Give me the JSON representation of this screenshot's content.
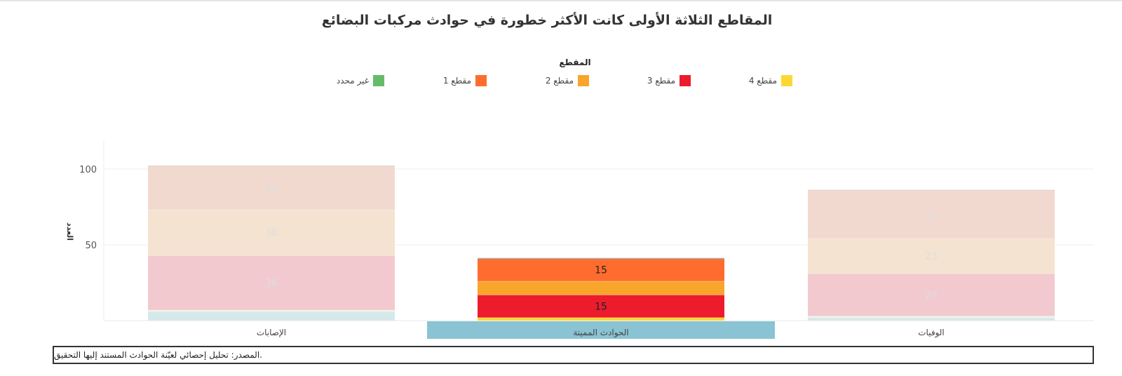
{
  "chart_data": {
    "type": "bar",
    "stacked": true,
    "title": "المقاطع الثلاثة الأولى كانت الأكثر خطورة في حوادث مركبات البضائع",
    "ylabel": "العدد",
    "xlabel": "",
    "ylim": [
      0,
      120
    ],
    "yticks": [
      50,
      100
    ],
    "grid": true,
    "legend": {
      "title": "المقطع",
      "placement": "top-center",
      "entries": [
        {
          "key": "s4",
          "label": "مقطع 4",
          "color": "#FDD835"
        },
        {
          "key": "s3",
          "label": "مقطع 3",
          "color": "#EC1C2D"
        },
        {
          "key": "s2",
          "label": "مقطع 2",
          "color": "#F9A52B"
        },
        {
          "key": "s1",
          "label": "مقطع 1",
          "color": "#FF6D2E"
        },
        {
          "key": "unspecified",
          "label": "غير محدد",
          "color": "#66BB6A"
        }
      ]
    },
    "categories": [
      "الإصابات",
      "الحوادث المميتة",
      "الوفيات"
    ],
    "selected_category": "الحوادث المميتة",
    "series": [
      {
        "key": "unspecified",
        "values": [
          0,
          0,
          0
        ]
      },
      {
        "key": "baseline",
        "values": [
          6,
          0,
          2
        ]
      },
      {
        "key": "s4",
        "values": [
          1,
          2,
          1
        ]
      },
      {
        "key": "s3",
        "values": [
          36,
          15,
          28
        ]
      },
      {
        "key": "s2",
        "values": [
          30,
          9,
          23
        ]
      },
      {
        "key": "s1",
        "values": [
          29,
          15,
          32
        ]
      }
    ],
    "dimmed_colors": {
      "baseline": "#D6E9EA",
      "s4": "#EEF2E2",
      "s3": "#F2C9CE",
      "s2": "#F4E3D0",
      "s1": "#F2D9D0"
    },
    "baseline_color": "#B6D7DC",
    "value_labels": [
      {
        "category": 0,
        "series": "s3",
        "text": "36"
      },
      {
        "category": 0,
        "series": "s2",
        "text": "30"
      },
      {
        "category": 0,
        "series": "s1",
        "text": "29"
      },
      {
        "category": 1,
        "series": "s3",
        "text": "15"
      },
      {
        "category": 1,
        "series": "s1",
        "text": "15"
      },
      {
        "category": 2,
        "series": "s3",
        "text": "28"
      },
      {
        "category": 2,
        "series": "s2",
        "text": "23"
      },
      {
        "category": 2,
        "series": "s1",
        "text": "32"
      }
    ],
    "selection_color": "#8AC3D3"
  },
  "source_note": ".المصدر: تحليل إحصائي لعيّنة الحوادث المستند إليها التحقيق"
}
